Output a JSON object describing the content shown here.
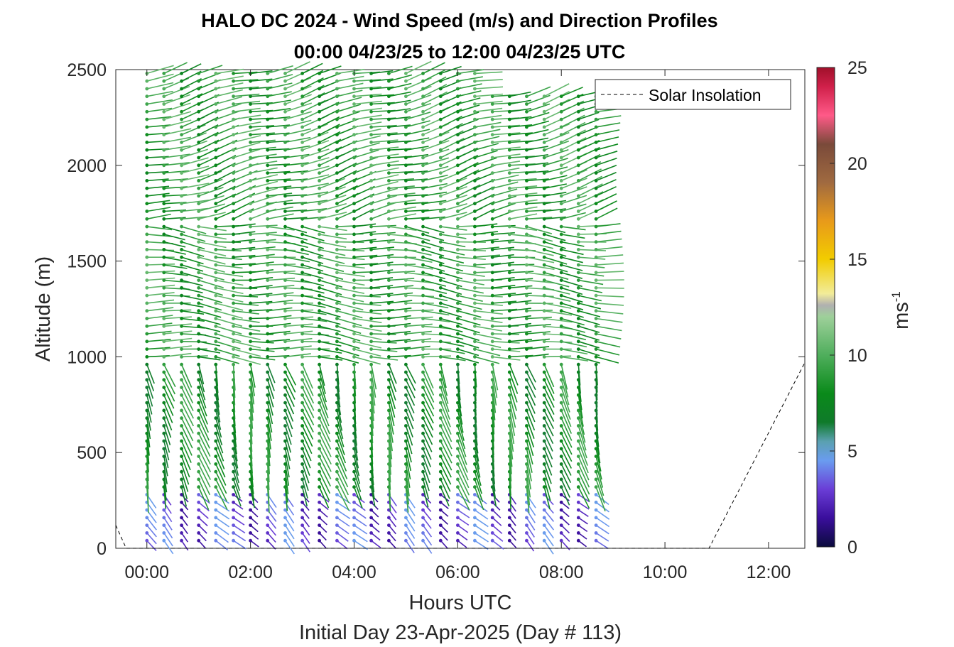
{
  "chart_data": {
    "type": "quiver",
    "title": "HALO DC 2024 - Wind Speed (m/s) and Direction Profiles",
    "subtitle": "00:00 04/23/25 to 12:00 04/23/25  UTC",
    "xlabel": "Hours UTC",
    "xlabel2": "Initial Day 23-Apr-2025 (Day # 113)",
    "ylabel": "Altitude (m)",
    "colorbar_label": "ms",
    "colorbar_label_exp": "-1",
    "xlim_hours": [
      -0.6,
      12.7
    ],
    "ylim": [
      0,
      2500
    ],
    "xticks": [
      {
        "value": 0,
        "label": "00:00"
      },
      {
        "value": 2,
        "label": "02:00"
      },
      {
        "value": 4,
        "label": "04:00"
      },
      {
        "value": 6,
        "label": "06:00"
      },
      {
        "value": 8,
        "label": "08:00"
      },
      {
        "value": 10,
        "label": "10:00"
      },
      {
        "value": 12,
        "label": "12:00"
      }
    ],
    "yticks": [
      {
        "value": 0,
        "label": "0"
      },
      {
        "value": 500,
        "label": "500"
      },
      {
        "value": 1000,
        "label": "1000"
      },
      {
        "value": 1500,
        "label": "1500"
      },
      {
        "value": 2000,
        "label": "2000"
      },
      {
        "value": 2500,
        "label": "2500"
      }
    ],
    "colorbar": {
      "range": [
        0,
        25
      ],
      "ticks": [
        {
          "value": 0,
          "label": "0"
        },
        {
          "value": 5,
          "label": "5"
        },
        {
          "value": 10,
          "label": "10"
        },
        {
          "value": 15,
          "label": "15"
        },
        {
          "value": 20,
          "label": "20"
        },
        {
          "value": 25,
          "label": "25"
        }
      ],
      "stops": [
        {
          "v": 0,
          "color": "#0b0b3d"
        },
        {
          "v": 1.5,
          "color": "#3a0e9c"
        },
        {
          "v": 3,
          "color": "#6a3dd6"
        },
        {
          "v": 4.5,
          "color": "#6a9cf0"
        },
        {
          "v": 5.5,
          "color": "#5aa0b0"
        },
        {
          "v": 6.5,
          "color": "#0f7a2a"
        },
        {
          "v": 8,
          "color": "#0a8a1a"
        },
        {
          "v": 10,
          "color": "#4fae5c"
        },
        {
          "v": 12,
          "color": "#9ed09a"
        },
        {
          "v": 12.6,
          "color": "#b0b0b0"
        },
        {
          "v": 13.2,
          "color": "#f2ec9a"
        },
        {
          "v": 15,
          "color": "#f2cc00"
        },
        {
          "v": 17,
          "color": "#e89a1a"
        },
        {
          "v": 19,
          "color": "#a06a40"
        },
        {
          "v": 21,
          "color": "#7a4a3a"
        },
        {
          "v": 22.5,
          "color": "#ff5a88"
        },
        {
          "v": 24,
          "color": "#d0204a"
        },
        {
          "v": 25,
          "color": "#a0102a"
        }
      ]
    },
    "legend": {
      "label": "Solar Insolation",
      "placement": "top-right"
    },
    "profile_times_hours": [
      0.0,
      0.33,
      0.67,
      1.0,
      1.33,
      1.67,
      2.0,
      2.33,
      2.67,
      3.0,
      3.33,
      3.67,
      4.0,
      4.33,
      4.67,
      5.0,
      5.33,
      5.67,
      6.0,
      6.33,
      6.67,
      7.0,
      7.33,
      7.67,
      8.0,
      8.33,
      8.67
    ],
    "wind_regimes": [
      {
        "alt_from": 0,
        "alt_to": 300,
        "speed": 3,
        "direction_deg": 315
      },
      {
        "alt_from": 300,
        "alt_to": 1000,
        "speed": 8,
        "direction_deg": 345
      },
      {
        "alt_from": 1000,
        "alt_to": 1700,
        "speed": 9,
        "direction_deg": 275
      },
      {
        "alt_from": 1700,
        "alt_to": 2500,
        "speed": 9,
        "direction_deg": 255
      }
    ],
    "solar_insolation": [
      {
        "hour": -0.6,
        "alt": 120
      },
      {
        "hour": -0.4,
        "alt": 0
      },
      {
        "hour": 10.85,
        "alt": 0
      },
      {
        "hour": 12.7,
        "alt": 970
      }
    ]
  }
}
